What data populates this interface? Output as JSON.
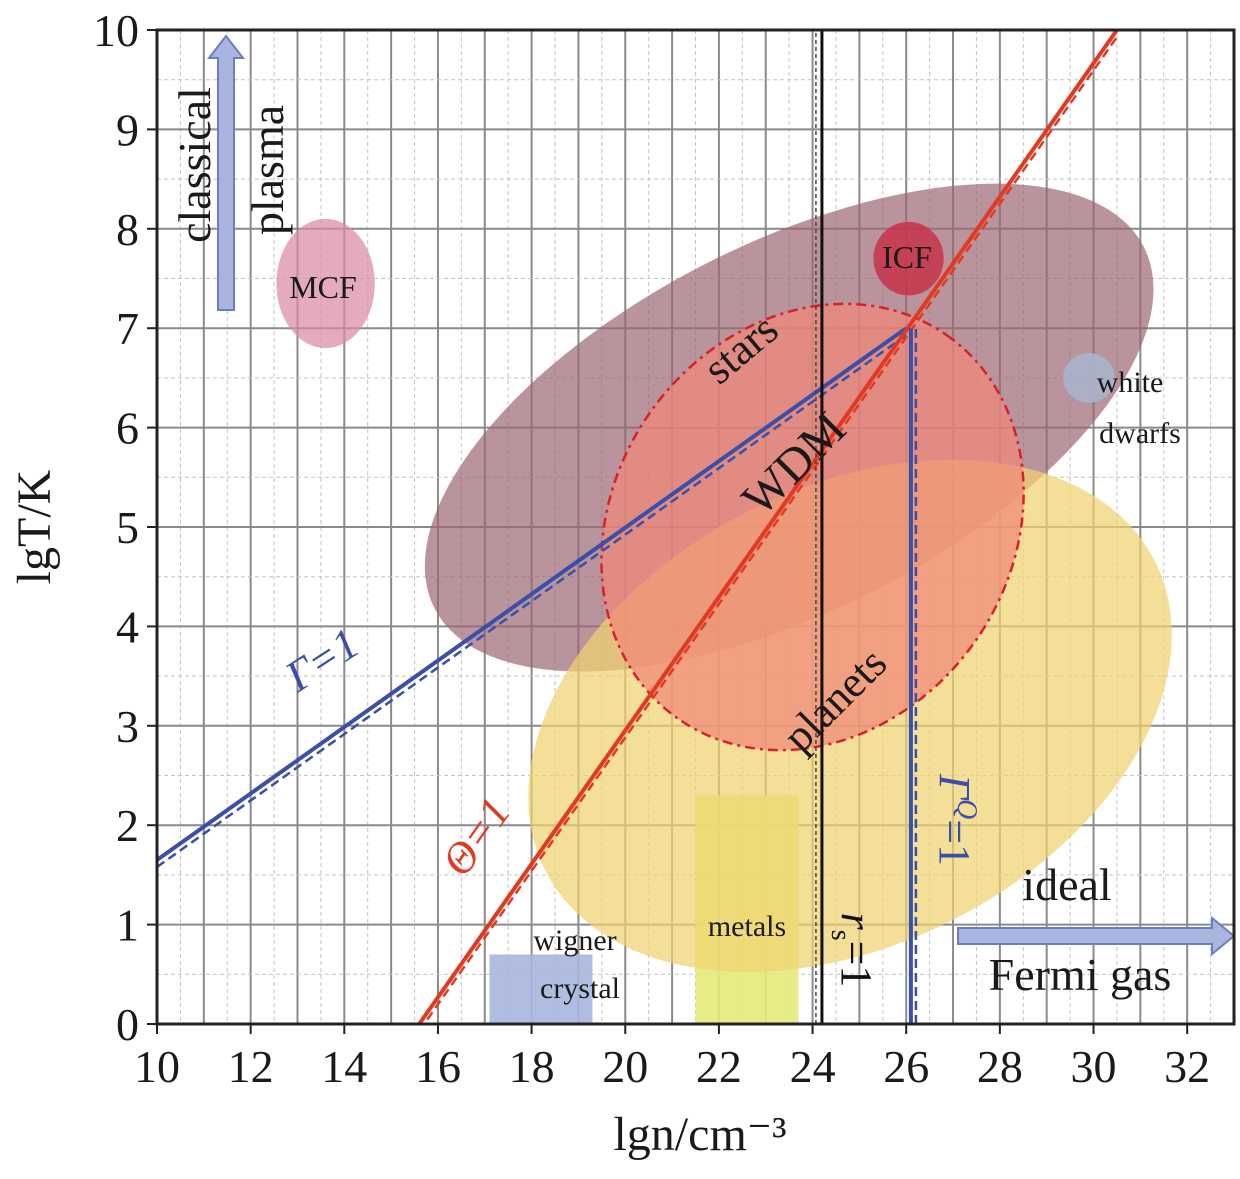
{
  "chart_data": {
    "type": "scatter",
    "xlabel": "lgn/cm⁻³",
    "ylabel": "lgT/K",
    "xlim": [
      10,
      33
    ],
    "ylim": [
      0,
      10
    ],
    "xticks": [
      "10",
      "12",
      "14",
      "16",
      "18",
      "20",
      "22",
      "24",
      "26",
      "28",
      "30",
      "32"
    ],
    "yticks": [
      "0",
      "1",
      "2",
      "3",
      "4",
      "5",
      "6",
      "7",
      "8",
      "9",
      "10"
    ],
    "grid": true,
    "lines": [
      {
        "name": "Γ=1",
        "color": "#3a4fa8",
        "points": [
          [
            10,
            1.65
          ],
          [
            26,
            7.0
          ]
        ]
      },
      {
        "name": "Θ=1",
        "color": "#e03a22",
        "points": [
          [
            15.6,
            0
          ],
          [
            30.5,
            10
          ]
        ]
      },
      {
        "name": "Γ^Q=1",
        "color": "#3a4fa8",
        "points": [
          [
            26.1,
            0
          ],
          [
            26.1,
            7.0
          ]
        ]
      },
      {
        "name": "r_s=1",
        "color": "#111111",
        "points": [
          [
            24.2,
            0
          ],
          [
            24.2,
            10
          ]
        ]
      }
    ],
    "regions": [
      {
        "name": "MCF",
        "color": "#d98aa6",
        "center": [
          13.6,
          7.45
        ],
        "rx": 1.05,
        "ry": 0.65,
        "angle": 0
      },
      {
        "name": "stars",
        "color": "#9c6672",
        "center": [
          23.5,
          6.0
        ],
        "rx": 8.5,
        "ry": 1.85,
        "angle": 27
      },
      {
        "name": "ICF",
        "color": "#c5324a",
        "center": [
          26.05,
          7.7
        ],
        "rx": 0.75,
        "ry": 0.37,
        "angle": 0
      },
      {
        "name": "WDM",
        "color": "#f08878",
        "center": [
          24.0,
          5.0
        ],
        "rx": 5.0,
        "ry": 2.0,
        "angle": 55
      },
      {
        "name": "planets",
        "color": "#f0d270",
        "center": [
          24.8,
          3.1
        ],
        "rx": 7.3,
        "ry": 2.3,
        "angle": 27
      },
      {
        "name": "white dwarfs",
        "color": "#a9b2c8",
        "center": [
          29.9,
          6.5
        ],
        "rx": 0.55,
        "ry": 0.25,
        "angle": 0
      }
    ],
    "boxes": [
      {
        "name": "wigner crystal",
        "color": "#a9b5de",
        "x": [
          17.1,
          19.3
        ],
        "y": [
          0,
          0.7
        ]
      },
      {
        "name": "metals",
        "color": "#e5ea7a",
        "x": [
          21.5,
          23.7
        ],
        "y": [
          0,
          2.3
        ]
      }
    ],
    "annotations": {
      "classical": "classical",
      "plasma": "plasma",
      "ideal": "ideal",
      "fermi_gas": "Fermi gas",
      "gamma": "Γ=1",
      "theta": "Θ=1",
      "gamma_q_main": "Γ",
      "gamma_q_sup": "Q",
      "gamma_q_tail": "=1",
      "rs_r": "r",
      "rs_sub": "s",
      "rs_tail": "=1",
      "mcf": "MCF",
      "icf": "ICF",
      "stars": "stars",
      "wdm": "WDM",
      "planets": "planets",
      "white": "white",
      "dwarfs": "dwarfs",
      "wigner": "wigner",
      "crystal": "crystal",
      "metals": "metals"
    }
  }
}
